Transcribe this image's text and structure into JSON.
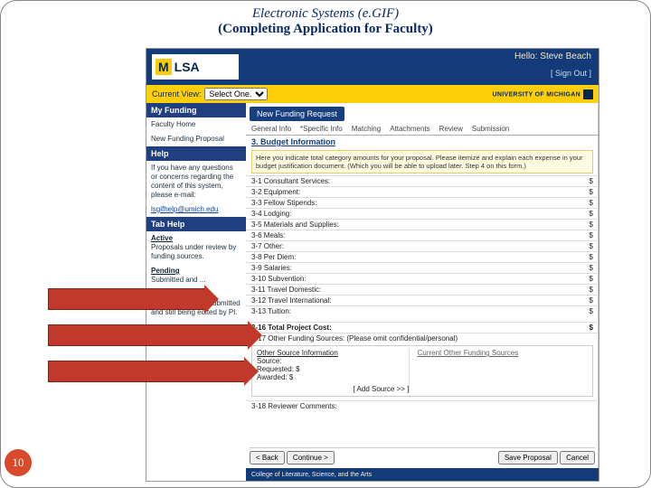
{
  "slide": {
    "title_line1": "Electronic Systems (e.GIF)",
    "title_line2": "(Completing Application for Faculty)",
    "page_number": "10",
    "footer": "College of Literature, Science, and the Arts"
  },
  "header": {
    "logo_prefix": "M",
    "logo_text": "LSA",
    "hello": "Hello: Steve Beach",
    "signout": "[ Sign Out ]"
  },
  "yellowbar": {
    "label": "Current View:",
    "select_value": "Select One...",
    "university": "UNIVERSITY OF MICHIGAN"
  },
  "sidebar": {
    "box1_title": "My Funding",
    "box1_items": [
      "Faculty Home",
      "New Funding Proposal"
    ],
    "box2_title": "Help",
    "box2_text": "If you have any questions or concerns regarding the content of this system, please e-mail:",
    "box2_email": "lsgifhelp@umich.edu",
    "box3_title": "Tab Help",
    "box3_active_h": "Active",
    "box3_active_t": "Proposals under review by funding sources.",
    "box3_pending_h": "Pending",
    "box3_pending_t": "Submitted and ...",
    "box3_saved_h": "Saved",
    "box3_saved_t": "Proposals not yet submitted and still being edited by PI."
  },
  "main": {
    "req_tab": "New Funding Request",
    "tabs": [
      "General Info",
      "*Specific Info",
      "Matching",
      "Attachments",
      "Review",
      "Submission"
    ],
    "section": "3. Budget Information",
    "note": "Here you indicate total category amounts for your proposal. Please itemize and explain each expense in your budget justification document. (Which you will be able to upload later. Step 4 on this form.)",
    "rows": [
      {
        "label": "3-1 Consultant Services:",
        "val": "$"
      },
      {
        "label": "3-2 Equipment:",
        "val": "$"
      },
      {
        "label": "3-3 Fellow Stipends:",
        "val": "$"
      },
      {
        "label": "3-4 Lodging:",
        "val": "$"
      },
      {
        "label": "3-5 Materials and Supplies:",
        "val": "$"
      },
      {
        "label": "3-6 Meals:",
        "val": "$"
      },
      {
        "label": "3-7 Other:",
        "val": "$"
      },
      {
        "label": "3-8 Per Diem:",
        "val": "$"
      },
      {
        "label": "3-9 Salaries:",
        "val": "$"
      },
      {
        "label": "3-10 Subvention:",
        "val": "$"
      },
      {
        "label": "3-11 Travel Domestic:",
        "val": "$"
      },
      {
        "label": "3-12 Travel International:",
        "val": "$"
      },
      {
        "label": "3-13 Tuition:",
        "val": "$"
      }
    ],
    "total_label": "3-16 Total Project Cost:",
    "total_val": "$",
    "other_label": "3-17 Other Funding Sources: (Please omit confidential/personal)",
    "sub_left_h": "Other Source Information",
    "sub_src": "Source:",
    "sub_req": "Requested: $",
    "sub_awd": "Awarded: $",
    "sub_add": "[ Add Source >> ]",
    "sub_right_h": "Current Other Funding Sources",
    "reviewer": "3-18 Reviewer Comments:",
    "btn_back": "< Back",
    "btn_cont": "Continue >",
    "btn_save": "Save Proposal",
    "btn_cancel": "Cancel"
  }
}
